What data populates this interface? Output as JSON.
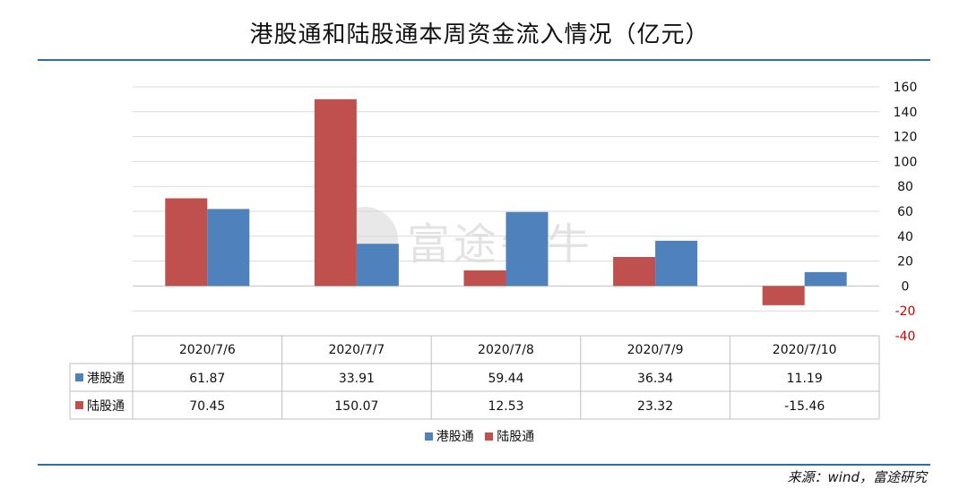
{
  "title": "港股通和陆股通本周资金流入情况（亿元）",
  "source": "来源：wind，富途研究",
  "watermark": "富途牛牛",
  "colors": {
    "hk": "#4f81bd",
    "lu": "#c0504d",
    "rule": "#2a6fa8",
    "negative_tick": "#d00000"
  },
  "chart_data": {
    "type": "bar",
    "title": "港股通和陆股通本周资金流入情况（亿元）",
    "categories": [
      "2020/7/6",
      "2020/7/7",
      "2020/7/8",
      "2020/7/9",
      "2020/7/10"
    ],
    "series": [
      {
        "name": "陆股通",
        "values": [
          70.45,
          150.07,
          12.53,
          23.32,
          -15.46
        ]
      },
      {
        "name": "港股通",
        "values": [
          61.87,
          33.91,
          59.44,
          36.34,
          11.19
        ]
      }
    ],
    "ylim": [
      -40,
      160
    ],
    "yticks": [
      160,
      140,
      120,
      100,
      80,
      60,
      40,
      20,
      0,
      -20,
      -40
    ],
    "y_axis_side": "right",
    "grid": true,
    "legend_position": "bottom",
    "legend": [
      "港股通",
      "陆股通"
    ]
  },
  "table": {
    "rows": [
      {
        "label": "港股通",
        "values": [
          "61.87",
          "33.91",
          "59.44",
          "36.34",
          "11.19"
        ]
      },
      {
        "label": "陆股通",
        "values": [
          "70.45",
          "150.07",
          "12.53",
          "23.32",
          "-15.46"
        ]
      }
    ]
  }
}
